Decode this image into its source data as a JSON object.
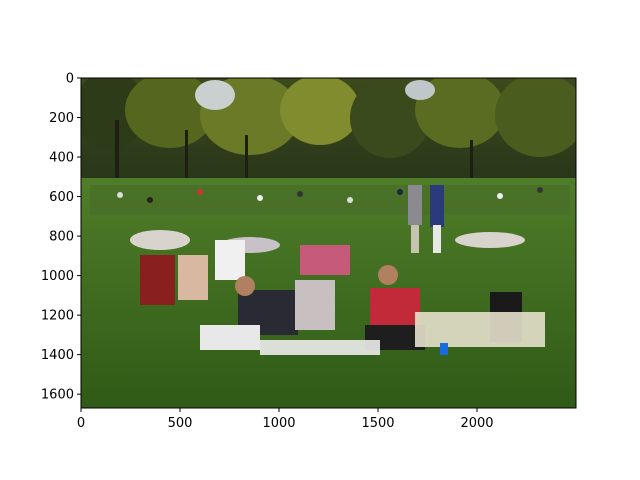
{
  "axes": {
    "x_range": [
      0,
      2500
    ],
    "y_range": [
      1670,
      0
    ],
    "x_ticks": [
      {
        "value": 0,
        "label": "0"
      },
      {
        "value": 500,
        "label": "500"
      },
      {
        "value": 1000,
        "label": "1000"
      },
      {
        "value": 1500,
        "label": "1500"
      },
      {
        "value": 2000,
        "label": "2000"
      }
    ],
    "y_ticks": [
      {
        "value": 0,
        "label": "0"
      },
      {
        "value": 200,
        "label": "200"
      },
      {
        "value": 400,
        "label": "400"
      },
      {
        "value": 600,
        "label": "600"
      },
      {
        "value": 800,
        "label": "800"
      },
      {
        "value": 1000,
        "label": "1000"
      },
      {
        "value": 1200,
        "label": "1200"
      },
      {
        "value": 1400,
        "label": "1400"
      },
      {
        "value": 1600,
        "label": "1600"
      }
    ]
  },
  "image": {
    "description_colors": {
      "sky": "#d9dde0",
      "trees_dark": "#2f3d16",
      "trees_light": "#6a7a2a",
      "grass": "#3f6b1f",
      "grass_dark": "#2d5216"
    }
  }
}
